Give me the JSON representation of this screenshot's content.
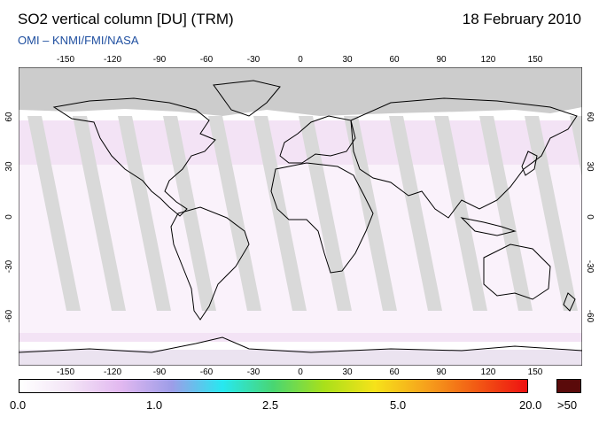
{
  "header": {
    "title": "SO2 vertical column [DU] (TRM)",
    "date": "18 February 2010",
    "subtitle": "OMI  –  KNMI/FMI/NASA"
  },
  "map": {
    "projection": "equirectangular",
    "lon_range": [
      -180,
      180
    ],
    "lat_range": [
      -90,
      90
    ],
    "lon_ticks": [
      "-150",
      "-120",
      "-90",
      "-60",
      "-30",
      "0",
      "30",
      "60",
      "90",
      "120",
      "150"
    ],
    "lat_ticks": [
      "60",
      "30",
      "0",
      "-30",
      "-60"
    ],
    "colors": {
      "no_data": "#d6d6d6",
      "high_latitude_mask": "#cccccc",
      "land_outline": "#000000",
      "background": "#ffffff"
    }
  },
  "colorbar": {
    "labels": [
      "0.0",
      "1.0",
      "2.5",
      "5.0",
      "20.0",
      ">50"
    ],
    "stops": [
      "#ffffff",
      "#f3e4f6",
      "#e2b8f0",
      "#9d9de8",
      "#27e8f0",
      "#49d672",
      "#a9e01a",
      "#f6e21a",
      "#f6a21c",
      "#f25a14",
      "#ee1111"
    ],
    "over_color": "#5a0a0a"
  }
}
